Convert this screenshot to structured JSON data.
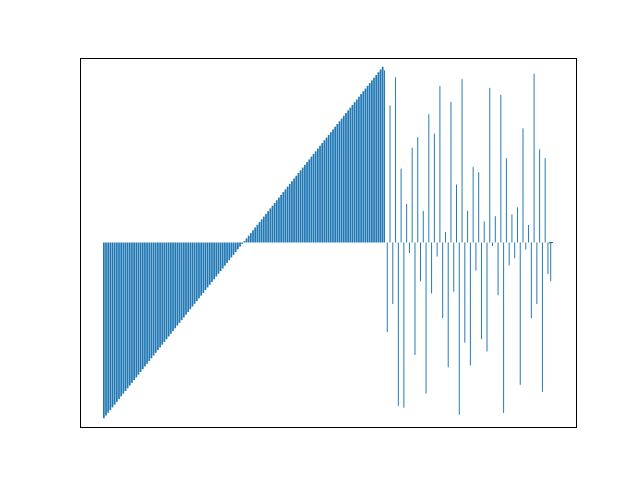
{
  "chart_data": {
    "type": "bar",
    "title": "",
    "xlabel": "",
    "ylabel": "",
    "grid": false,
    "axes_visible": false,
    "ylim": [
      -1.05,
      1.05
    ],
    "bar_color": "#1f77b4",
    "smooth_section": {
      "count": 130,
      "min": -1.0,
      "max": 1.0,
      "rise_start": 0.0,
      "rise_end": 1.0
    },
    "random_section": {
      "values": [
        0.98,
        -0.51,
        0.78,
        -0.35,
        0.94,
        -0.93,
        0.42,
        -0.94,
        0.22,
        -0.06,
        0.54,
        -0.64,
        0.6,
        -0.22,
        0.18,
        -0.86,
        0.73,
        -0.29,
        0.62,
        -0.08,
        0.89,
        -0.43,
        0.06,
        -0.71,
        0.8,
        -0.28,
        0.33,
        -0.98,
        0.93,
        -0.57,
        0.18,
        -0.7,
        0.43,
        -0.16,
        0.4,
        -0.55,
        0.12,
        -0.62,
        0.88,
        -0.02,
        0.15,
        -0.3,
        0.84,
        -0.97,
        0.48,
        -0.13,
        0.16,
        -0.09,
        0.2,
        -0.81,
        0.65,
        -0.04,
        0.1,
        -0.43,
        0.96,
        -0.35,
        0.53,
        -0.85,
        0.48,
        -0.18
      ]
    },
    "tail_value": -0.22
  }
}
